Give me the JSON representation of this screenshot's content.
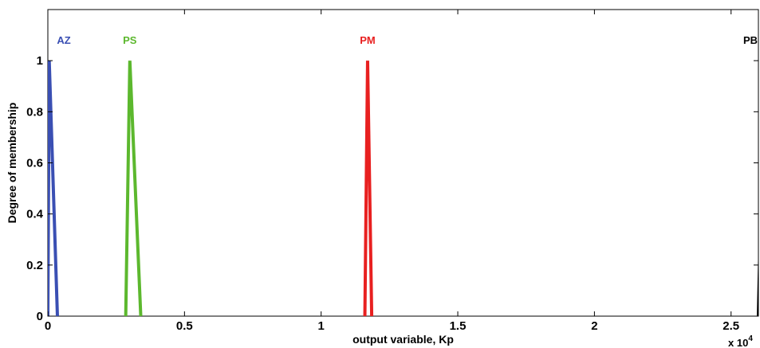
{
  "chart_data": {
    "type": "line",
    "title": "",
    "xlabel": "output variable, Kp",
    "ylabel": "Degree of membership",
    "x_multiplier_label": "x 10",
    "x_multiplier_exponent": "4",
    "xlim": [
      0,
      2.6
    ],
    "ylim": [
      0,
      1.2
    ],
    "xticks": [
      0,
      0.5,
      1,
      1.5,
      2,
      2.5
    ],
    "xtick_labels": [
      "0",
      "0.5",
      "1",
      "1.5",
      "2",
      "2.5"
    ],
    "yticks": [
      0,
      0.2,
      0.4,
      0.6,
      0.8,
      1
    ],
    "ytick_labels": [
      "0",
      "0.2",
      "0.4",
      "0.6",
      "0.8",
      "1"
    ],
    "grid": false,
    "series": [
      {
        "name": "AZ",
        "color": "#3a4fb3",
        "x": [
          0,
          0.005,
          0.035
        ],
        "y": [
          0,
          1,
          0
        ]
      },
      {
        "name": "PS",
        "color": "#5cb82e",
        "x": [
          0.285,
          0.3,
          0.34
        ],
        "y": [
          0,
          1,
          0
        ]
      },
      {
        "name": "PM",
        "color": "#e82020",
        "x": [
          1.16,
          1.17,
          1.185
        ],
        "y": [
          0,
          1,
          0
        ]
      },
      {
        "name": "PB",
        "color": "#000000",
        "x": [
          2.6,
          2.62,
          2.64
        ],
        "y": [
          0,
          1,
          0
        ]
      }
    ]
  }
}
